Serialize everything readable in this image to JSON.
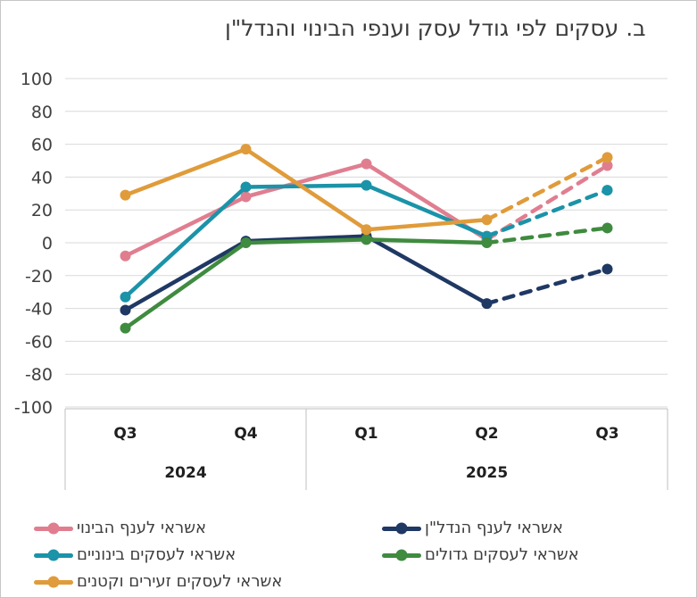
{
  "title": "ב. עסקים לפי גודל עסק וענפי הבינוי והנדל\"ן",
  "chart_data": {
    "type": "line",
    "x": [
      "Q3",
      "Q4",
      "Q1",
      "Q2",
      "Q3"
    ],
    "x_groups": [
      {
        "label": "2024",
        "span": 2
      },
      {
        "label": "2025",
        "span": 3
      }
    ],
    "ylim": [
      -100,
      100
    ],
    "ytick_step": 20,
    "grid": true,
    "gridline_color": "#d9d9d9",
    "axis_box_color": "#bfbfbf",
    "last_segment_dashed": true,
    "legend_position": "bottom",
    "series": [
      {
        "name": "אשראי לענף הבינוי",
        "color": "#e07e90",
        "values": [
          -8,
          28,
          48,
          2,
          47
        ]
      },
      {
        "name": "אשראי לענף הנדל\"ן",
        "color": "#1f3864",
        "values": [
          -41,
          1,
          4,
          -37,
          -16
        ]
      },
      {
        "name": "אשראי לעסקים בינוניים",
        "color": "#1b93a8",
        "values": [
          -33,
          34,
          35,
          4,
          32
        ]
      },
      {
        "name": "אשראי לעסקים גדולים",
        "color": "#3f8b3f",
        "values": [
          -52,
          0,
          2,
          0,
          9
        ]
      },
      {
        "name": "אשראי לעסקים זעירים וקטנים",
        "color": "#e09b3a",
        "values": [
          29,
          57,
          8,
          14,
          52
        ]
      }
    ]
  }
}
